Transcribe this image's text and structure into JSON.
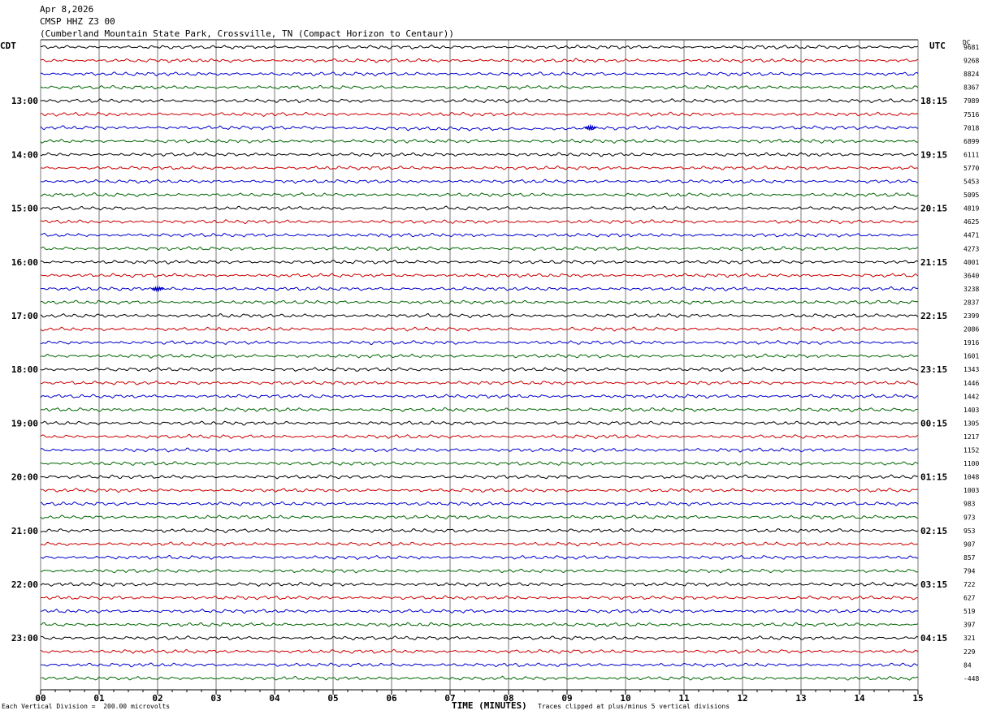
{
  "header": {
    "date": "Apr 8,2026",
    "station": "CMSP HHZ Z3 00",
    "location": "(Cumberland Mountain State Park, Crossville, TN (Compact Horizon to Centaur))"
  },
  "axes": {
    "left_tz": "CDT",
    "right_tz": "UTC",
    "dc_label": "DC",
    "x_title": "TIME (MINUTES)"
  },
  "footer": {
    "scale_note": "Each Vertical Division =  200.00 microvolts",
    "clip_note": "Traces clipped at plus/minus 5 vertical divisions"
  },
  "chart_data": {
    "type": "line",
    "x_ticks": [
      "00",
      "01",
      "02",
      "03",
      "04",
      "05",
      "06",
      "07",
      "08",
      "09",
      "10",
      "11",
      "12",
      "13",
      "14",
      "15"
    ],
    "xlim": [
      0,
      15
    ],
    "xlabel": "TIME (MINUTES)",
    "trace_colors": [
      "#000000",
      "#cc0000",
      "#0000cc",
      "#006600"
    ],
    "left_hour_labels": [
      "13:00",
      "14:00",
      "15:00",
      "16:00",
      "17:00",
      "18:00",
      "19:00",
      "20:00",
      "21:00",
      "22:00",
      "23:00"
    ],
    "right_hour_labels": [
      "18:15",
      "19:15",
      "20:15",
      "21:15",
      "22:15",
      "23:15",
      "00:15",
      "01:15",
      "02:15",
      "03:15",
      "04:15"
    ],
    "dc_offsets": [
      "9681",
      "9268",
      "8824",
      "8367",
      "7989",
      "7516",
      "7018",
      "6899",
      "6111",
      "5770",
      "5453",
      "5095",
      "4819",
      "4625",
      "4471",
      "4273",
      "4001",
      "3640",
      "3238",
      "2837",
      "2399",
      "2086",
      "1916",
      "1601",
      "1343",
      "1446",
      "1442",
      "1403",
      "1305",
      "1217",
      "1152",
      "1100",
      "1048",
      "1003",
      "983",
      "973",
      "953",
      "907",
      "857",
      "794",
      "722",
      "627",
      "519",
      "397",
      "321",
      "229",
      "84",
      "-448"
    ],
    "events": [
      {
        "trace": 6,
        "minute": 9.4
      },
      {
        "trace": 18,
        "minute": 2.0
      }
    ]
  }
}
